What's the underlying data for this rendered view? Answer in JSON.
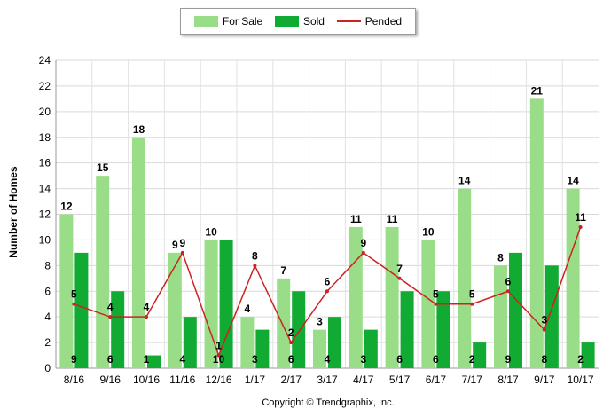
{
  "chart_data": {
    "type": "bar",
    "categories": [
      "8/16",
      "9/16",
      "10/16",
      "11/16",
      "12/16",
      "1/17",
      "2/17",
      "3/17",
      "4/17",
      "5/17",
      "6/17",
      "7/17",
      "8/17",
      "9/17",
      "10/17"
    ],
    "series": [
      {
        "name": "For Sale",
        "type": "bar",
        "color": "#99dd88",
        "values": [
          12,
          15,
          18,
          9,
          10,
          4,
          7,
          3,
          11,
          11,
          10,
          14,
          8,
          21,
          14
        ]
      },
      {
        "name": "Sold",
        "type": "bar",
        "color": "#11aa33",
        "values": [
          9,
          6,
          1,
          4,
          10,
          3,
          6,
          4,
          3,
          6,
          6,
          2,
          9,
          8,
          2
        ]
      },
      {
        "name": "Pended",
        "type": "line",
        "color": "#cc2222",
        "values": [
          5,
          4,
          4,
          9,
          1,
          8,
          2,
          6,
          9,
          7,
          5,
          5,
          6,
          3,
          11
        ]
      }
    ],
    "ylabel": "Number of Homes",
    "ylim": [
      0,
      24
    ],
    "yticks": [
      0,
      2,
      4,
      6,
      8,
      10,
      12,
      14,
      16,
      18,
      20,
      22,
      24
    ],
    "grid": true,
    "legend_position": "top-center"
  },
  "legend": {
    "for_sale": "For Sale",
    "sold": "Sold",
    "pended": "Pended"
  },
  "footer": {
    "copyright": "Copyright © Trendgraphix, Inc."
  }
}
